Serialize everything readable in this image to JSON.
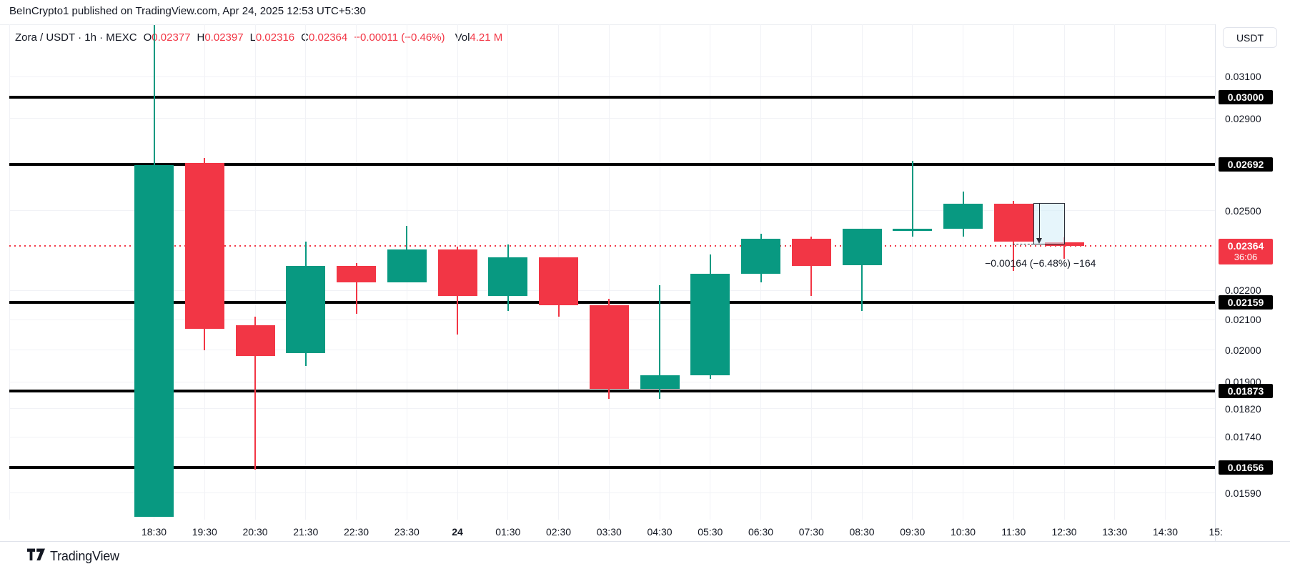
{
  "attribution": "BeInCrypto1 published on TradingView.com, Apr 24, 2025 12:53 UTC+5:30",
  "legend": {
    "title": "Zora / USDT · 1h · MEXC",
    "ohlc": [
      {
        "label": "O",
        "value": "0.02377"
      },
      {
        "label": "H",
        "value": "0.02397"
      },
      {
        "label": "L",
        "value": "0.02316"
      },
      {
        "label": "C",
        "value": "0.02364"
      }
    ],
    "change": "−0.00011 (−0.46%)",
    "volume_label": "Vol",
    "volume_value": "4.21 M"
  },
  "price_axis": {
    "currency_button": "USDT",
    "ticks": [
      "0.03100",
      "0.02900",
      "0.02500",
      "0.02200",
      "0.02100",
      "0.02000",
      "0.01900",
      "0.01820",
      "0.01740",
      "0.01590"
    ],
    "level_badges": [
      "0.03000",
      "0.02692",
      "0.02159",
      "0.01873",
      "0.01656"
    ],
    "last_price_badge": {
      "price": "0.02364",
      "countdown": "36:06"
    }
  },
  "time_axis": {
    "labels": [
      "18:30",
      "19:30",
      "20:30",
      "21:30",
      "22:30",
      "23:30",
      "24",
      "01:30",
      "02:30",
      "03:30",
      "04:30",
      "05:30",
      "06:30",
      "07:30",
      "08:30",
      "09:30",
      "10:30",
      "11:30",
      "12:30",
      "13:30",
      "14:30",
      "15:"
    ],
    "bold_label": "24"
  },
  "chart_data": {
    "type": "candlestick",
    "title": "Zora / USDT · 1h · MEXC",
    "price_scale": "logarithmic",
    "ylim": [
      0.0152,
      0.034
    ],
    "grid": true,
    "x": [
      "18:30",
      "19:30",
      "20:30",
      "21:30",
      "22:30",
      "23:30",
      "24",
      "01:30",
      "02:30",
      "03:30",
      "04:30",
      "05:30",
      "06:30",
      "07:30",
      "08:30",
      "09:30",
      "10:30",
      "11:30",
      "12:30"
    ],
    "candles": [
      {
        "time": "18:30",
        "open": 0.0153,
        "high": 0.0337,
        "low": 0.0153,
        "close": 0.0269
      },
      {
        "time": "19:30",
        "open": 0.027,
        "high": 0.0272,
        "low": 0.02,
        "close": 0.0207
      },
      {
        "time": "20:30",
        "open": 0.0208,
        "high": 0.0211,
        "low": 0.0165,
        "close": 0.0198
      },
      {
        "time": "21:30",
        "open": 0.0199,
        "high": 0.0238,
        "low": 0.0195,
        "close": 0.0229
      },
      {
        "time": "22:30",
        "open": 0.0229,
        "high": 0.023,
        "low": 0.0212,
        "close": 0.0223
      },
      {
        "time": "23:30",
        "open": 0.0223,
        "high": 0.0244,
        "low": 0.0223,
        "close": 0.0235
      },
      {
        "time": "24",
        "open": 0.0235,
        "high": 0.0236,
        "low": 0.0205,
        "close": 0.0218
      },
      {
        "time": "01:30",
        "open": 0.0218,
        "high": 0.0237,
        "low": 0.0213,
        "close": 0.0232
      },
      {
        "time": "02:30",
        "open": 0.0232,
        "high": 0.0232,
        "low": 0.0211,
        "close": 0.0215
      },
      {
        "time": "03:30",
        "open": 0.0215,
        "high": 0.0217,
        "low": 0.0185,
        "close": 0.0188
      },
      {
        "time": "04:30",
        "open": 0.0188,
        "high": 0.0222,
        "low": 0.0185,
        "close": 0.0192
      },
      {
        "time": "05:30",
        "open": 0.0192,
        "high": 0.0233,
        "low": 0.0191,
        "close": 0.0226
      },
      {
        "time": "06:30",
        "open": 0.0226,
        "high": 0.0241,
        "low": 0.0223,
        "close": 0.0239
      },
      {
        "time": "07:30",
        "open": 0.0239,
        "high": 0.024,
        "low": 0.0218,
        "close": 0.0229
      },
      {
        "time": "08:30",
        "open": 0.0229,
        "high": 0.0243,
        "low": 0.0213,
        "close": 0.0243
      },
      {
        "time": "09:30",
        "open": 0.0243,
        "high": 0.0271,
        "low": 0.024,
        "close": 0.0243
      },
      {
        "time": "10:30",
        "open": 0.0243,
        "high": 0.0258,
        "low": 0.024,
        "close": 0.0253
      },
      {
        "time": "11:30",
        "open": 0.0253,
        "high": 0.0254,
        "low": 0.0227,
        "close": 0.0238
      },
      {
        "time": "12:30",
        "open": 0.02377,
        "high": 0.02397,
        "low": 0.02316,
        "close": 0.02364
      }
    ],
    "horizontal_levels": [
      0.03,
      0.02692,
      0.02159,
      0.01873,
      0.01656
    ],
    "last_price": 0.02364,
    "y_ticks": [
      0.031,
      0.029,
      0.025,
      0.022,
      0.021,
      0.02,
      0.019,
      0.0182,
      0.0174,
      0.0159
    ],
    "measure": {
      "from_price": 0.02532,
      "to_price": 0.02368,
      "label": "−0.00164 (−6.48%) −164"
    }
  },
  "footer": {
    "brand": "TradingView"
  },
  "colors": {
    "up": "#089981",
    "down": "#F23645",
    "text": "#131722",
    "red": "#F23645",
    "level_line": "#000000",
    "grid": "#F1F2F6",
    "border": "#E0E3EB",
    "badge_bg": "#000000",
    "badge_text": "#FFFFFF",
    "measure_fill": "rgba(214,238,248,0.6)"
  }
}
